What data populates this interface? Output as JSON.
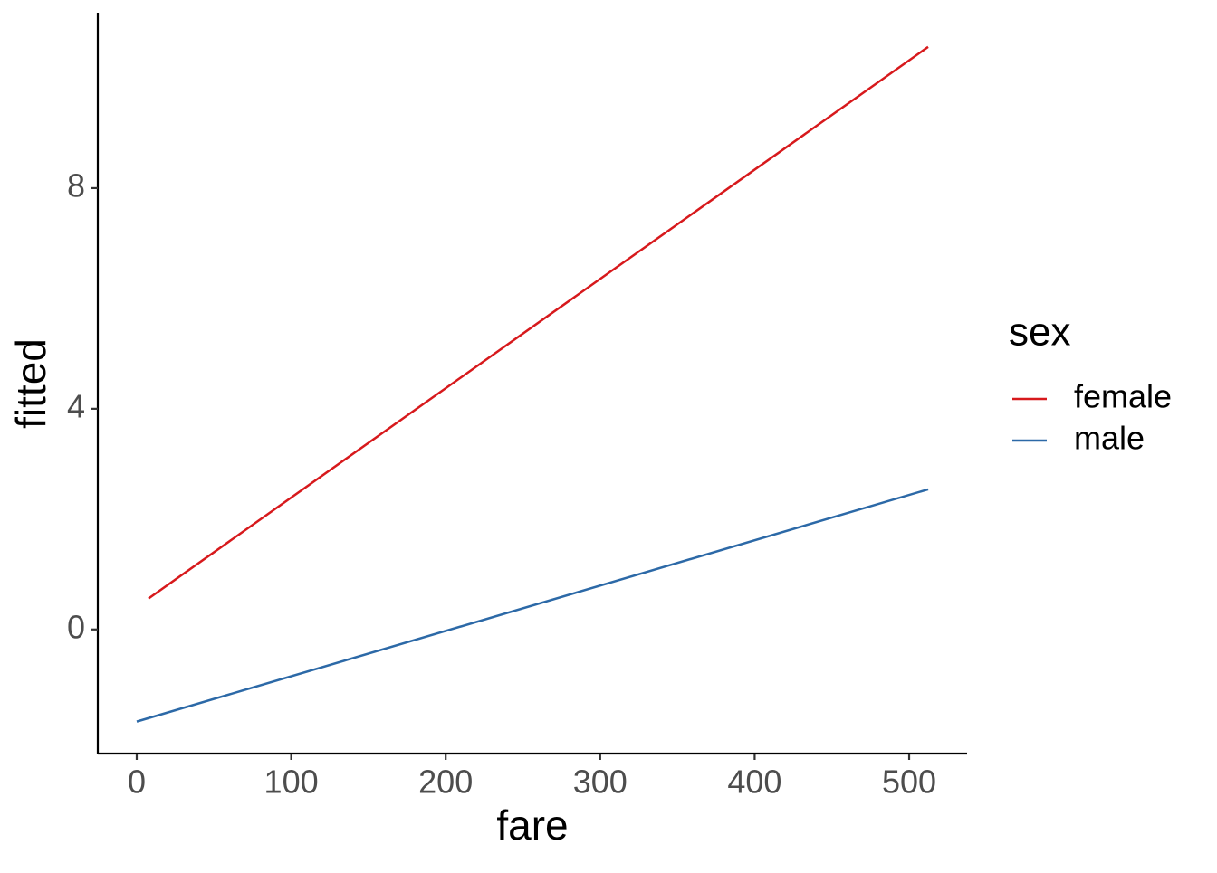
{
  "chart_data": {
    "type": "line",
    "x_label": "fare",
    "y_label": "fitted",
    "legend_title": "sex",
    "legend": "right",
    "series": [
      {
        "name": "female",
        "color": "#d7191c",
        "x": [
          7.6,
          512.3
        ],
        "values": [
          0.56,
          10.56
        ]
      },
      {
        "name": "male",
        "color": "#2c69a7",
        "x": [
          0,
          512.3
        ],
        "values": [
          -1.67,
          2.54
        ]
      }
    ],
    "xlim": [
      -25.2,
      537.5
    ],
    "xticks": [
      0,
      100,
      200,
      300,
      400,
      500
    ],
    "ylim": [
      -2.25,
      11.18
    ],
    "yticks": [
      0,
      4,
      8
    ],
    "grid": false
  }
}
